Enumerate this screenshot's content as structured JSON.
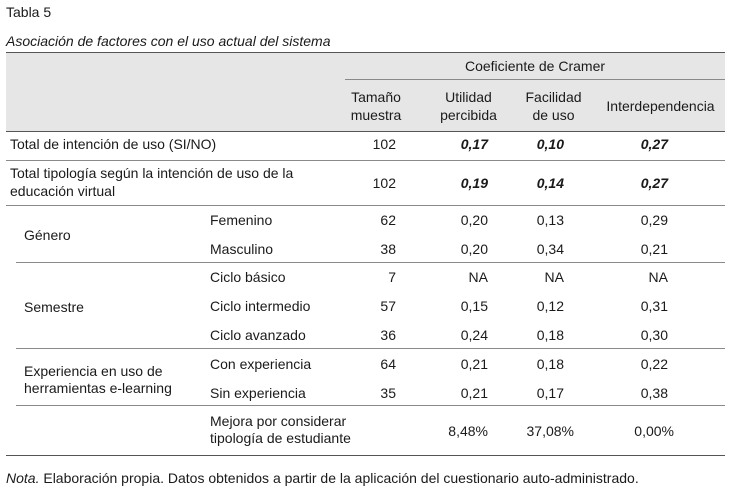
{
  "table_label": "Tabla 5",
  "table_title": "Asociación de factores con el uso actual del sistema",
  "header": {
    "group": "Coeficiente de Cramer",
    "col_muestra": "Tamaño muestra",
    "col_muestra_l1": "Tamaño",
    "col_muestra_l2": "muestra",
    "col_utilidad_l1": "Utilidad",
    "col_utilidad_l2": "percibida",
    "col_facilidad_l1": "Facilidad",
    "col_facilidad_l2": "de uso",
    "col_interdependencia": "Interdependencia"
  },
  "rows": {
    "total_intencion": {
      "label": "Total de intención de uso (SI/NO)",
      "n": "102",
      "utilidad": "0,17",
      "facilidad": "0,10",
      "interdependencia": "0,27"
    },
    "total_tipologia": {
      "label_l1": "Total tipología según la intención de uso de la",
      "label_l2": "educación virtual",
      "n": "102",
      "utilidad": "0,19",
      "facilidad": "0,14",
      "interdependencia": "0,27"
    },
    "genero": {
      "label": "Género",
      "femenino": {
        "label": "Femenino",
        "n": "62",
        "utilidad": "0,20",
        "facilidad": "0,13",
        "interdependencia": "0,29"
      },
      "masculino": {
        "label": "Masculino",
        "n": "38",
        "utilidad": "0,20",
        "facilidad": "0,34",
        "interdependencia": "0,21"
      }
    },
    "semestre": {
      "label": "Semestre",
      "basico": {
        "label": "Ciclo básico",
        "n": "7",
        "utilidad": "NA",
        "facilidad": "NA",
        "interdependencia": "NA"
      },
      "intermedio": {
        "label": "Ciclo intermedio",
        "n": "57",
        "utilidad": "0,15",
        "facilidad": "0,12",
        "interdependencia": "0,31"
      },
      "avanzado": {
        "label": "Ciclo avanzado",
        "n": "36",
        "utilidad": "0,24",
        "facilidad": "0,18",
        "interdependencia": "0,30"
      }
    },
    "experiencia": {
      "label_l1": "Experiencia en uso de",
      "label_l2": "herramientas e-learning",
      "con": {
        "label": "Con experiencia",
        "n": "64",
        "utilidad": "0,21",
        "facilidad": "0,18",
        "interdependencia": "0,22"
      },
      "sin": {
        "label": "Sin experiencia",
        "n": "35",
        "utilidad": "0,21",
        "facilidad": "0,17",
        "interdependencia": "0,38"
      }
    },
    "mejora": {
      "label_l1": "Mejora por considerar",
      "label_l2": "tipología de estudiante",
      "utilidad": "8,48%",
      "facilidad": "37,08%",
      "interdependencia": "0,00%"
    }
  },
  "note": {
    "lead": "Nota.",
    "text": " Elaboración propia. Datos obtenidos a partir de la aplicación del cuestionario auto-administrado."
  }
}
